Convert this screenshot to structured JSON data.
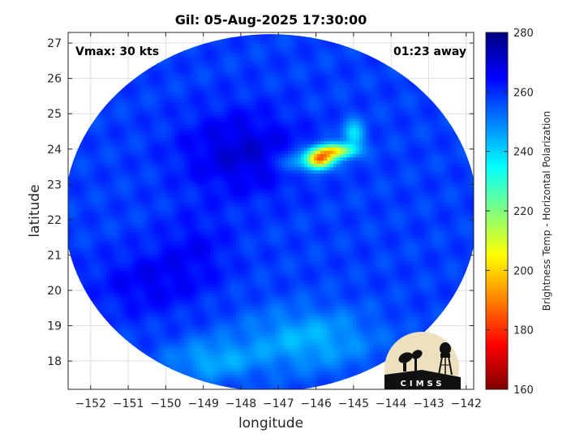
{
  "chart_data": {
    "type": "heatmap",
    "title": "Gil: 05-Aug-2025 17:30:00",
    "xlabel": "longitude",
    "ylabel": "latitude",
    "xlim": [
      -152.6,
      -141.8
    ],
    "ylim": [
      17.2,
      27.3
    ],
    "x_ticks": [
      -152,
      -151,
      -150,
      -149,
      -148,
      -147,
      -146,
      -145,
      -144,
      -143,
      -142
    ],
    "y_ticks": [
      18,
      19,
      20,
      21,
      22,
      23,
      24,
      25,
      26,
      27
    ],
    "grid": true,
    "annotations": {
      "left": "Vmax: 30 kts",
      "right": "01:23 away"
    },
    "swath": {
      "center_lon": -147.2,
      "center_lat": 22.2,
      "radius_lon": 5.5,
      "radius_lat": 5.05
    },
    "field": {
      "background_value": 258,
      "features": [
        {
          "lon": -148.0,
          "lat": 23.9,
          "value": 270,
          "spread_lon": 1.6,
          "spread_lat": 1.2
        },
        {
          "lon": -150.5,
          "lat": 20.2,
          "value": 266,
          "spread_lon": 1.4,
          "spread_lat": 0.9
        },
        {
          "lon": -149.2,
          "lat": 21.2,
          "value": 264,
          "spread_lon": 1.0,
          "spread_lat": 1.0
        },
        {
          "lon": -146.2,
          "lat": 18.6,
          "value": 244,
          "spread_lon": 1.8,
          "spread_lat": 0.9
        },
        {
          "lon": -148.8,
          "lat": 18.0,
          "value": 246,
          "spread_lon": 1.2,
          "spread_lat": 0.6
        },
        {
          "lon": -145.9,
          "lat": 23.7,
          "value": 188,
          "spread_lon": 0.35,
          "spread_lat": 0.25
        },
        {
          "lon": -145.5,
          "lat": 23.95,
          "value": 205,
          "spread_lon": 0.5,
          "spread_lat": 0.2
        },
        {
          "lon": -145.0,
          "lat": 24.4,
          "value": 238,
          "spread_lon": 0.3,
          "spread_lat": 0.4
        },
        {
          "lon": -146.6,
          "lat": 23.6,
          "value": 242,
          "spread_lon": 0.4,
          "spread_lat": 0.3
        }
      ]
    },
    "colorbar": {
      "label": "Brightness Temp - Horizontal Polarization",
      "min": 160,
      "max": 280,
      "ticks": [
        160,
        180,
        200,
        220,
        240,
        260,
        280
      ],
      "colormap": "jet",
      "jet_stops": [
        "#800000",
        "#ff0000",
        "#ff8000",
        "#ffff00",
        "#80ff80",
        "#00ffff",
        "#0080ff",
        "#0000ff",
        "#000080"
      ]
    }
  },
  "logo": {
    "text": "CIMSS",
    "name": "cimss-logo"
  }
}
